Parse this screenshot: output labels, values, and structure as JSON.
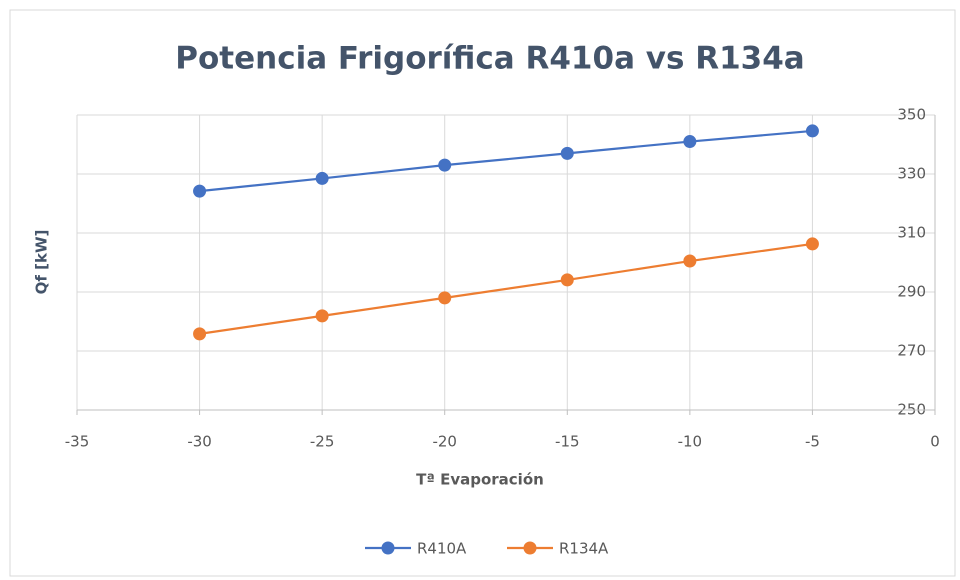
{
  "chart_data": {
    "type": "line",
    "title": "Potencia Frigorífica R410a vs R134a",
    "x_label": "Tª Evaporación",
    "y_label": "Qf [kW]",
    "x": [
      -30,
      -25,
      -20,
      -15,
      -10,
      -5
    ],
    "series": [
      {
        "name": "R410A",
        "color": "#4472c4",
        "values": [
          324.2,
          328.5,
          333,
          337,
          341,
          344.6
        ]
      },
      {
        "name": "R134A",
        "color": "#ed7d31",
        "values": [
          275.8,
          281.9,
          288,
          294.1,
          300.5,
          306.3
        ]
      }
    ],
    "xlim": [
      -35,
      0
    ],
    "xticks": [
      -35,
      -30,
      -25,
      -20,
      -15,
      -10,
      -5,
      0
    ],
    "ylim": [
      250,
      350
    ],
    "yticks": [
      250,
      270,
      290,
      310,
      330,
      350
    ],
    "grid": true,
    "legend": "bottom"
  }
}
